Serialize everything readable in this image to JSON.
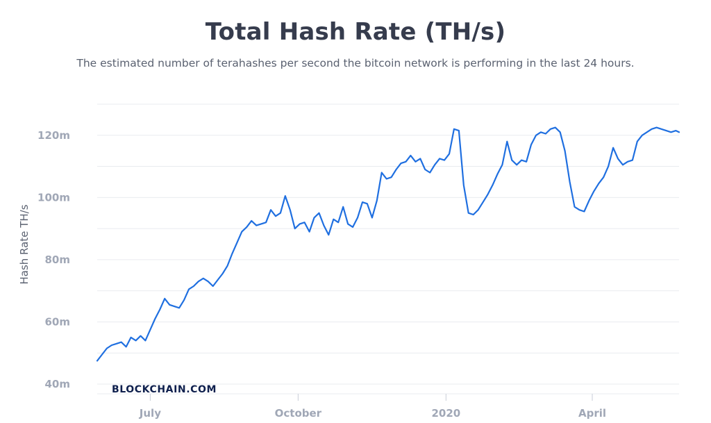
{
  "header": {
    "title": "Total Hash Rate (TH/s)",
    "subtitle": "The estimated number of terahashes per second the bitcoin network is performing in the last 24 hours."
  },
  "watermark": "BLOCKCHAIN.COM",
  "colors": {
    "line": "#1f6fe0",
    "grid": "#e9ebef",
    "tick": "#a0a7b6",
    "title": "#363c4d",
    "watermark": "#0e1f4d"
  },
  "chart_data": {
    "type": "line",
    "title": "Total Hash Rate (TH/s)",
    "subtitle": "The estimated number of terahashes per second the bitcoin network is performing in the last 24 hours.",
    "xlabel": "",
    "ylabel": "Hash Rate TH/s",
    "ylim": [
      40000000,
      130000000
    ],
    "xlim": [
      "2019-05-29",
      "2020-05-25"
    ],
    "grid": true,
    "legend": "none",
    "y_ticks": [
      {
        "value": 40000000,
        "label": "40m"
      },
      {
        "value": 60000000,
        "label": "60m"
      },
      {
        "value": 80000000,
        "label": "80m"
      },
      {
        "value": 100000000,
        "label": "100m"
      },
      {
        "value": 120000000,
        "label": "120m"
      }
    ],
    "x_ticks": [
      {
        "value": "2019-07-01",
        "label": "July"
      },
      {
        "value": "2019-10-01",
        "label": "October"
      },
      {
        "value": "2020-01-01",
        "label": "2020"
      },
      {
        "value": "2020-04-01",
        "label": "April"
      }
    ],
    "series": [
      {
        "x": [
          "2019-05-29",
          "2019-06-01",
          "2019-06-04",
          "2019-06-07",
          "2019-06-10",
          "2019-06-13",
          "2019-06-16",
          "2019-06-19",
          "2019-06-22",
          "2019-06-25",
          "2019-06-28",
          "2019-07-01",
          "2019-07-04",
          "2019-07-07",
          "2019-07-10",
          "2019-07-13",
          "2019-07-16",
          "2019-07-19",
          "2019-07-22",
          "2019-07-25",
          "2019-07-28",
          "2019-07-31",
          "2019-08-03",
          "2019-08-06",
          "2019-08-09",
          "2019-08-12",
          "2019-08-15",
          "2019-08-18",
          "2019-08-21",
          "2019-08-24",
          "2019-08-27",
          "2019-08-30",
          "2019-09-02",
          "2019-09-05",
          "2019-09-08",
          "2019-09-11",
          "2019-09-14",
          "2019-09-17",
          "2019-09-20",
          "2019-09-23",
          "2019-09-26",
          "2019-09-29",
          "2019-10-02",
          "2019-10-05",
          "2019-10-08",
          "2019-10-11",
          "2019-10-14",
          "2019-10-17",
          "2019-10-20",
          "2019-10-23",
          "2019-10-26",
          "2019-10-29",
          "2019-11-01",
          "2019-11-04",
          "2019-11-07",
          "2019-11-10",
          "2019-11-13",
          "2019-11-16",
          "2019-11-19",
          "2019-11-22",
          "2019-11-25",
          "2019-11-28",
          "2019-12-01",
          "2019-12-04",
          "2019-12-07",
          "2019-12-10",
          "2019-12-13",
          "2019-12-16",
          "2019-12-19",
          "2019-12-22",
          "2019-12-25",
          "2019-12-28",
          "2019-12-31",
          "2020-01-03",
          "2020-01-06",
          "2020-01-09",
          "2020-01-12",
          "2020-01-15",
          "2020-01-18",
          "2020-01-21",
          "2020-01-24",
          "2020-01-27",
          "2020-01-30",
          "2020-02-02",
          "2020-02-05",
          "2020-02-08",
          "2020-02-11",
          "2020-02-14",
          "2020-02-17",
          "2020-02-20",
          "2020-02-23",
          "2020-02-26",
          "2020-02-29",
          "2020-03-03",
          "2020-03-06",
          "2020-03-09",
          "2020-03-12",
          "2020-03-15",
          "2020-03-18",
          "2020-03-21",
          "2020-03-24",
          "2020-03-27",
          "2020-03-30",
          "2020-04-02",
          "2020-04-05",
          "2020-04-08",
          "2020-04-11",
          "2020-04-14",
          "2020-04-17",
          "2020-04-20",
          "2020-04-23",
          "2020-04-26",
          "2020-04-29",
          "2020-05-02",
          "2020-05-05",
          "2020-05-08",
          "2020-05-11",
          "2020-05-14",
          "2020-05-17",
          "2020-05-20",
          "2020-05-23",
          "2020-05-25"
        ],
        "values": [
          47500000,
          49500000,
          51500000,
          52500000,
          53000000,
          53500000,
          52000000,
          55000000,
          54000000,
          55500000,
          54000000,
          57500000,
          61000000,
          64000000,
          67500000,
          65500000,
          65000000,
          64500000,
          67000000,
          70500000,
          71500000,
          73000000,
          74000000,
          73000000,
          71500000,
          73500000,
          75500000,
          78000000,
          82000000,
          85500000,
          89000000,
          90500000,
          92500000,
          91000000,
          91500000,
          92000000,
          96000000,
          94000000,
          95000000,
          100500000,
          96000000,
          90000000,
          91500000,
          92000000,
          89000000,
          93500000,
          95000000,
          91000000,
          88000000,
          93000000,
          92000000,
          97000000,
          91500000,
          90500000,
          93500000,
          98500000,
          98000000,
          93500000,
          99000000,
          108000000,
          106000000,
          106500000,
          109000000,
          111000000,
          111500000,
          113500000,
          111500000,
          112500000,
          109000000,
          108000000,
          110500000,
          112500000,
          112000000,
          114000000,
          122000000,
          121500000,
          104000000,
          95000000,
          94500000,
          96000000,
          98500000,
          101000000,
          104000000,
          107500000,
          110500000,
          118000000,
          112000000,
          110500000,
          112000000,
          111500000,
          117000000,
          120000000,
          121000000,
          120500000,
          122000000,
          122500000,
          121000000,
          115000000,
          105000000,
          97000000,
          96000000,
          95500000,
          99000000,
          102000000,
          104500000,
          106500000,
          110000000,
          116000000,
          112500000,
          110500000,
          111500000,
          112000000,
          118000000,
          120000000,
          121000000,
          122000000,
          122500000,
          122000000,
          121500000,
          121000000,
          121500000,
          121000000
        ],
        "x_note": "dates"
      }
    ]
  }
}
